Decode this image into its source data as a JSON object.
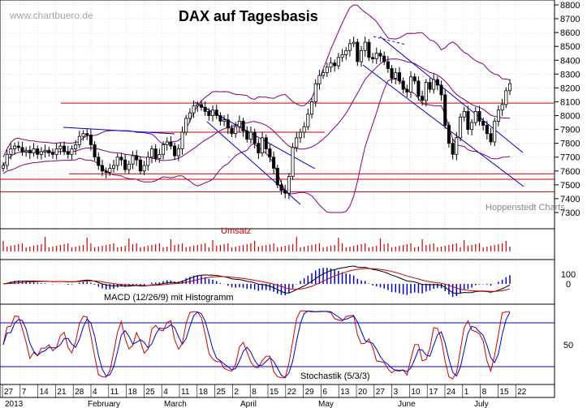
{
  "header": {
    "watermark": "www.chartbuero.de",
    "title": "DAX auf Tagesbasis",
    "credit": "Hoppenstedt Charts"
  },
  "panels": {
    "volume_label": "Umsatz",
    "macd_label": "MACD (12/26/9) mit Histogramm",
    "stoch_label": "Stochastik (5/3/3)"
  },
  "colors": {
    "frame": "#000000",
    "grid": "#c8c8c8",
    "candle": "#000000",
    "bollinger": "#800080",
    "trend_blue": "#0000cc",
    "support_red": "#cc0000",
    "macd_line": "#000000",
    "signal_line": "#cc0000",
    "histogram": "#0000cc",
    "volume": "#cc0000",
    "stoch_k": "#cc0000",
    "stoch_d": "#0000cc",
    "stoch_level": "#0000cc"
  },
  "chart_data": {
    "type": "candlestick",
    "title": "DAX auf Tagesbasis",
    "price_axis": {
      "ylim": [
        7300,
        8800
      ],
      "ticks": [
        "7300",
        "7400",
        "7500",
        "7600",
        "7700",
        "7800",
        "7900",
        "8000",
        "8100",
        "8200",
        "8300",
        "8400",
        "8500",
        "8600",
        "8700",
        "8800"
      ]
    },
    "macd_axis": {
      "ticks": [
        "100",
        "0"
      ]
    },
    "stoch_axis": {
      "ticks": [
        "50"
      ]
    },
    "x_axis": {
      "day_ticks": [
        "27",
        "7",
        "14",
        "21",
        "28",
        "4",
        "11",
        "18",
        "25",
        "4",
        "11",
        "18",
        "25",
        "2",
        "8",
        "15",
        "22",
        "29",
        "6",
        "13",
        "20",
        "27",
        "3",
        "10",
        "17",
        "24",
        "1",
        "8",
        "15",
        "22"
      ],
      "month_labels": [
        "2013",
        "February",
        "March",
        "April",
        "May",
        "June",
        "July"
      ]
    },
    "horizontal_lines": [
      8090,
      7880,
      7580,
      7540,
      7450
    ],
    "close": [
      7640,
      7720,
      7760,
      7780,
      7770,
      7740,
      7750,
      7730,
      7760,
      7720,
      7740,
      7750,
      7730,
      7720,
      7760,
      7780,
      7740,
      7720,
      7760,
      7790,
      7850,
      7870,
      7860,
      7790,
      7700,
      7640,
      7600,
      7590,
      7620,
      7640,
      7700,
      7680,
      7610,
      7650,
      7710,
      7680,
      7600,
      7640,
      7700,
      7760,
      7690,
      7720,
      7790,
      7810,
      7780,
      7710,
      7760,
      7880,
      7980,
      8020,
      8070,
      8080,
      8060,
      8030,
      8000,
      8040,
      8000,
      7960,
      7970,
      7910,
      7870,
      7920,
      7960,
      7890,
      7830,
      7880,
      7800,
      7730,
      7840,
      7760,
      7700,
      7620,
      7500,
      7460,
      7440,
      7560,
      7770,
      7840,
      7880,
      7920,
      8010,
      8100,
      8230,
      8290,
      8310,
      8350,
      8380,
      8360,
      8420,
      8440,
      8470,
      8520,
      8530,
      8390,
      8470,
      8530,
      8420,
      8410,
      8450,
      8430,
      8390,
      8340,
      8270,
      8310,
      8250,
      8190,
      8170,
      8280,
      8250,
      8140,
      8110,
      8240,
      8190,
      8260,
      8220,
      8150,
      7930,
      7800,
      7720,
      7840,
      7990,
      8030,
      7900,
      7950,
      8030,
      7960,
      7930,
      7870,
      7810,
      7960,
      8040,
      8080,
      8180,
      8230
    ]
  }
}
